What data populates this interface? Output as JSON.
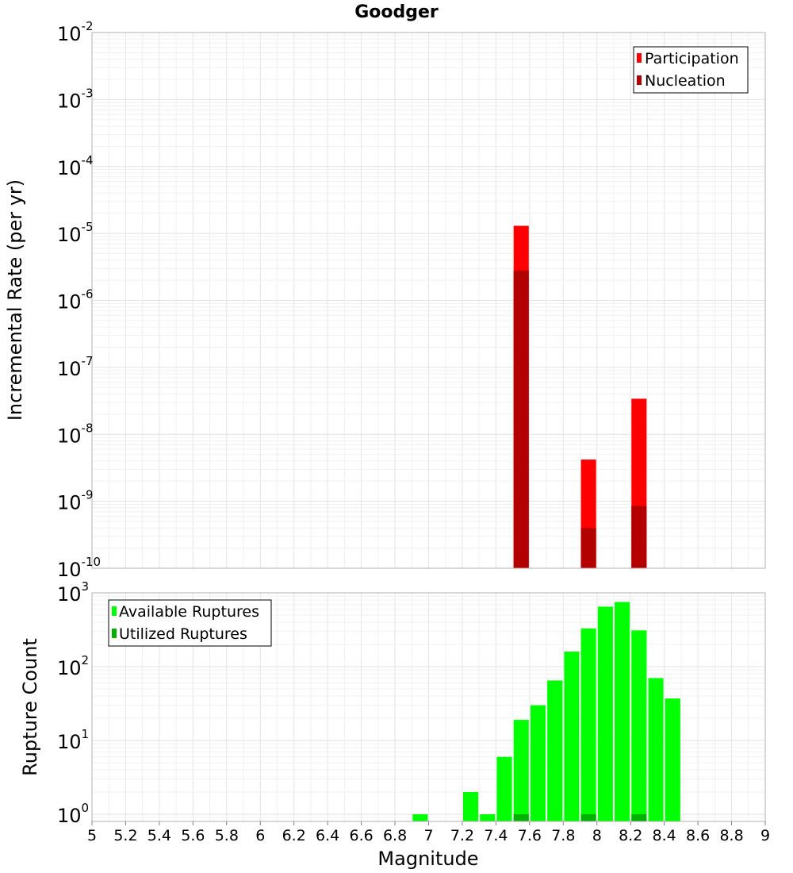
{
  "title": "Goodger",
  "colors": {
    "participation": "#ff0000",
    "nucleation": "#b30000",
    "available": "#00ff00",
    "utilized": "#00b300"
  },
  "chart_data": [
    {
      "type": "bar",
      "panel": "top",
      "title": "Goodger",
      "ylabel": "Incremental Rate (per yr)",
      "xlabel": "",
      "yscale": "log",
      "ylim": [
        1e-10,
        0.01
      ],
      "xlim": [
        5,
        9
      ],
      "bar_width": 0.09,
      "yticks": [
        {
          "base": "10",
          "exp": "-2",
          "value": 0.01
        },
        {
          "base": "10",
          "exp": "-3",
          "value": 0.001
        },
        {
          "base": "10",
          "exp": "-4",
          "value": 0.0001
        },
        {
          "base": "10",
          "exp": "-5",
          "value": 1e-05
        },
        {
          "base": "10",
          "exp": "-6",
          "value": 1e-06
        },
        {
          "base": "10",
          "exp": "-7",
          "value": 1e-07
        },
        {
          "base": "10",
          "exp": "-8",
          "value": 1e-08
        },
        {
          "base": "10",
          "exp": "-9",
          "value": 1e-09
        },
        {
          "base": "10",
          "exp": "-10",
          "value": 1e-10
        }
      ],
      "legend": {
        "position": "top-right",
        "entries": [
          "Participation",
          "Nucleation"
        ]
      },
      "grid": true,
      "series": [
        {
          "name": "Participation",
          "color": "#ff0000",
          "points": [
            [
              7.55,
              1.3e-05
            ],
            [
              7.95,
              4.2e-09
            ],
            [
              8.25,
              3.4e-08
            ]
          ]
        },
        {
          "name": "Nucleation",
          "color": "#b30000",
          "points": [
            [
              7.55,
              2.8e-06
            ],
            [
              7.95,
              4e-10
            ],
            [
              8.25,
              8.5e-10
            ]
          ]
        }
      ]
    },
    {
      "type": "bar",
      "panel": "bottom",
      "ylabel": "Rupture Count",
      "xlabel": "Magnitude",
      "yscale": "log",
      "ylim": [
        0.8,
        1000
      ],
      "xlim": [
        5,
        9
      ],
      "bar_width": 0.09,
      "yticks": [
        {
          "base": "10",
          "exp": "3",
          "value": 1000
        },
        {
          "base": "10",
          "exp": "2",
          "value": 100
        },
        {
          "base": "10",
          "exp": "1",
          "value": 10
        },
        {
          "base": "10",
          "exp": "0",
          "value": 1
        }
      ],
      "xticks": [
        "5",
        "5.2",
        "5.4",
        "5.6",
        "5.8",
        "6",
        "6.2",
        "6.4",
        "6.6",
        "6.8",
        "7",
        "7.2",
        "7.4",
        "7.6",
        "7.8",
        "8",
        "8.2",
        "8.4",
        "8.6",
        "8.8",
        "9"
      ],
      "legend": {
        "position": "top-left",
        "entries": [
          "Available Ruptures",
          "Utilized Ruptures"
        ]
      },
      "grid": true,
      "series": [
        {
          "name": "Available Ruptures",
          "color": "#00ff00",
          "points": [
            [
              6.95,
              1
            ],
            [
              7.25,
              2
            ],
            [
              7.35,
              1
            ],
            [
              7.45,
              6
            ],
            [
              7.55,
              19
            ],
            [
              7.65,
              30
            ],
            [
              7.75,
              65
            ],
            [
              7.85,
              160
            ],
            [
              7.95,
              330
            ],
            [
              8.05,
              650
            ],
            [
              8.15,
              750
            ],
            [
              8.25,
              310
            ],
            [
              8.35,
              70
            ],
            [
              8.45,
              37
            ]
          ]
        },
        {
          "name": "Utilized Ruptures",
          "color": "#00b300",
          "points": [
            [
              7.55,
              1
            ],
            [
              7.95,
              1
            ],
            [
              8.25,
              1
            ]
          ]
        }
      ]
    }
  ]
}
